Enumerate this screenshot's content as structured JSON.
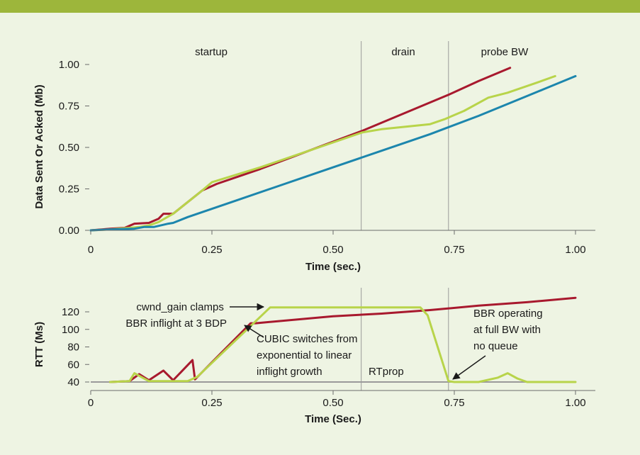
{
  "colors": {
    "background": "#eef4e3",
    "top_bar": "#9db63b",
    "red": "#a8192e",
    "blue": "#1c86ad",
    "green": "#b8d44a",
    "gray": "#9a9a9a",
    "axis": "#6b6b6b"
  },
  "chart_data": [
    {
      "type": "line",
      "xlabel": "Time (sec.)",
      "ylabel": "Data Sent Or Acked (Mb)",
      "xlim": [
        0,
        1.05
      ],
      "ylim": [
        -0.02,
        1.08
      ],
      "x_ticks": [
        0,
        0.25,
        0.5,
        0.75,
        1.0
      ],
      "x_tick_labels": [
        "0",
        "0.25",
        "0.50",
        "0.75",
        "1.00"
      ],
      "y_ticks": [
        0,
        0.25,
        0.5,
        0.75,
        1.0
      ],
      "y_tick_labels": [
        "0.00",
        "0.25",
        "0.50",
        "0.75",
        "1.00"
      ],
      "phases": [
        {
          "label": "startup",
          "x": 0.25
        },
        {
          "label": "drain",
          "x": 0.645
        },
        {
          "label": "probe BW",
          "x": 0.838
        }
      ],
      "phase_boundaries": [
        0.558,
        0.738
      ],
      "series": [
        {
          "color": "red",
          "points": [
            [
              0,
              0
            ],
            [
              0.04,
              0.01
            ],
            [
              0.07,
              0.015
            ],
            [
              0.09,
              0.04
            ],
            [
              0.12,
              0.045
            ],
            [
              0.14,
              0.07
            ],
            [
              0.15,
              0.1
            ],
            [
              0.17,
              0.1
            ],
            [
              0.2,
              0.17
            ],
            [
              0.23,
              0.24
            ],
            [
              0.26,
              0.28
            ],
            [
              0.35,
              0.37
            ],
            [
              0.45,
              0.48
            ],
            [
              0.56,
              0.6
            ],
            [
              0.65,
              0.71
            ],
            [
              0.74,
              0.82
            ],
            [
              0.8,
              0.9
            ],
            [
              0.865,
              0.98
            ]
          ]
        },
        {
          "color": "green",
          "points": [
            [
              0,
              0
            ],
            [
              0.04,
              0.005
            ],
            [
              0.08,
              0.015
            ],
            [
              0.1,
              0.02
            ],
            [
              0.12,
              0.03
            ],
            [
              0.14,
              0.05
            ],
            [
              0.17,
              0.1
            ],
            [
              0.2,
              0.17
            ],
            [
              0.23,
              0.24
            ],
            [
              0.25,
              0.29
            ],
            [
              0.35,
              0.38
            ],
            [
              0.45,
              0.48
            ],
            [
              0.56,
              0.59
            ],
            [
              0.6,
              0.61
            ],
            [
              0.7,
              0.64
            ],
            [
              0.73,
              0.67
            ],
            [
              0.77,
              0.72
            ],
            [
              0.82,
              0.8
            ],
            [
              0.86,
              0.83
            ],
            [
              0.92,
              0.89
            ],
            [
              0.958,
              0.93
            ]
          ]
        },
        {
          "color": "blue",
          "points": [
            [
              0,
              0
            ],
            [
              0.04,
              0.005
            ],
            [
              0.09,
              0.01
            ],
            [
              0.11,
              0.02
            ],
            [
              0.13,
              0.02
            ],
            [
              0.16,
              0.04
            ],
            [
              0.17,
              0.045
            ],
            [
              0.2,
              0.08
            ],
            [
              0.3,
              0.18
            ],
            [
              0.4,
              0.28
            ],
            [
              0.5,
              0.38
            ],
            [
              0.6,
              0.48
            ],
            [
              0.7,
              0.58
            ],
            [
              0.8,
              0.69
            ],
            [
              0.9,
              0.81
            ],
            [
              1.0,
              0.93
            ]
          ]
        }
      ]
    },
    {
      "type": "line",
      "xlabel": "Time (Sec.)",
      "ylabel": "RTT (Ms)",
      "xlim": [
        0,
        1.05
      ],
      "ylim": [
        38,
        132
      ],
      "x_ticks": [
        0,
        0.25,
        0.5,
        0.75,
        1.0
      ],
      "x_tick_labels": [
        "0",
        "0.25",
        "0.50",
        "0.75",
        "1.00"
      ],
      "y_ticks": [
        40,
        60,
        80,
        100,
        120
      ],
      "y_tick_labels": [
        "40",
        "60",
        "80",
        "100",
        "120"
      ],
      "phase_boundaries": [
        0.558,
        0.738
      ],
      "baseline_y": 40,
      "series": [
        {
          "color": "red",
          "points": [
            [
              0.04,
              40
            ],
            [
              0.08,
              41
            ],
            [
              0.1,
              49
            ],
            [
              0.12,
              42
            ],
            [
              0.15,
              53
            ],
            [
              0.17,
              42
            ],
            [
              0.21,
              65
            ],
            [
              0.215,
              43
            ],
            [
              0.33,
              107
            ],
            [
              0.34,
              107
            ],
            [
              0.5,
              115
            ],
            [
              0.6,
              118
            ],
            [
              0.7,
              122
            ],
            [
              0.8,
              127
            ],
            [
              0.9,
              131
            ],
            [
              1.0,
              136
            ]
          ]
        },
        {
          "color": "green",
          "points": [
            [
              0.04,
              40
            ],
            [
              0.08,
              41
            ],
            [
              0.09,
              50
            ],
            [
              0.12,
              41
            ],
            [
              0.2,
              41
            ],
            [
              0.22,
              46
            ],
            [
              0.37,
              125
            ],
            [
              0.68,
              125
            ],
            [
              0.695,
              116
            ],
            [
              0.738,
              41
            ],
            [
              0.75,
              40
            ],
            [
              0.8,
              40
            ],
            [
              0.84,
              45
            ],
            [
              0.86,
              50
            ],
            [
              0.88,
              44
            ],
            [
              0.9,
              40
            ],
            [
              1.0,
              40
            ]
          ]
        }
      ],
      "annotations": [
        {
          "lines": [
            "cwnd_gain clamps",
            "BBR inflight at 3 BDP"
          ]
        },
        {
          "lines": [
            "CUBIC switches from",
            "exponential to linear",
            "inflight growth"
          ]
        },
        {
          "lines": [
            "BBR operating",
            "at full BW with",
            "no queue"
          ]
        },
        {
          "lines": [
            "RTprop"
          ]
        }
      ]
    }
  ]
}
